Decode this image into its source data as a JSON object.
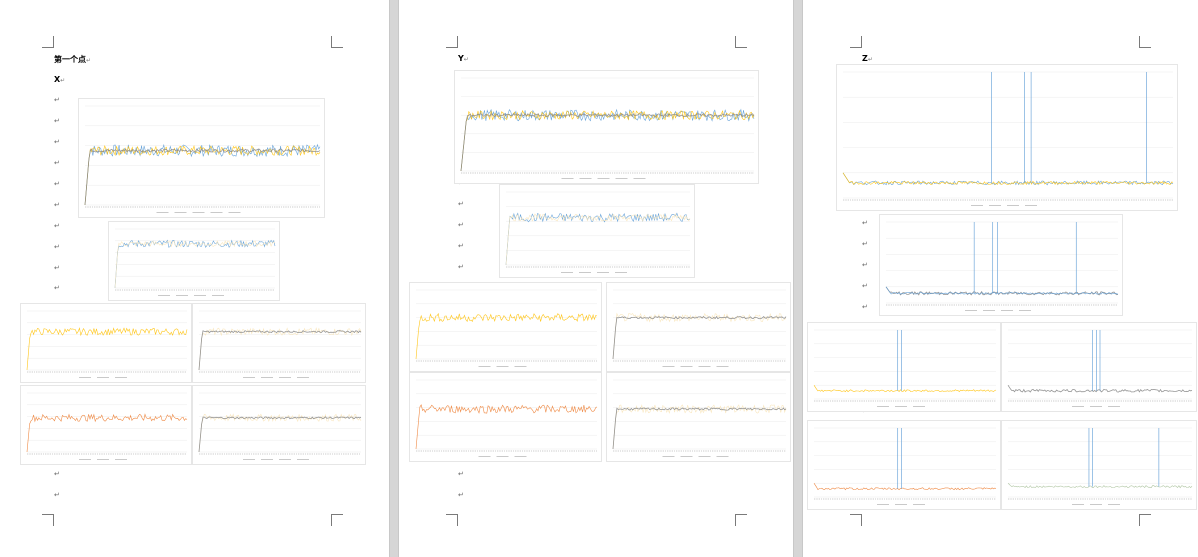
{
  "pages": [
    {
      "heading_main": "第一个点",
      "heading_sub": "X"
    },
    {
      "heading_sub": "Y"
    },
    {
      "heading_sub": "Z"
    }
  ],
  "paragraph_mark": "↵",
  "colors": {
    "blue": "#5b9bd5",
    "yellow": "#ffc000",
    "orange": "#ed7d31",
    "gray": "#8a8a8a",
    "pale": "#f8e4b8",
    "sage": "#a9c19a"
  },
  "chart_data": [
    {
      "type": "line",
      "page": "X",
      "series_colors": [
        "blue",
        "yellow",
        "gray"
      ],
      "ylim": [
        0,
        1
      ],
      "baseline": 0.55
    },
    {
      "type": "line",
      "page": "X",
      "series_colors": [
        "blue",
        "pale"
      ],
      "ylim": [
        0,
        1
      ],
      "baseline": 0.75
    },
    {
      "type": "line",
      "page": "X",
      "series_colors": [
        "yellow"
      ],
      "ylim": [
        0,
        1
      ],
      "baseline": 0.65
    },
    {
      "type": "line",
      "page": "X",
      "series_colors": [
        "pale",
        "gray"
      ],
      "ylim": [
        0,
        1
      ],
      "baseline": 0.65
    },
    {
      "type": "line",
      "page": "X",
      "series_colors": [
        "orange"
      ],
      "ylim": [
        0,
        1
      ],
      "baseline": 0.58
    },
    {
      "type": "line",
      "page": "X",
      "series_colors": [
        "pale",
        "gray"
      ],
      "ylim": [
        0,
        1
      ],
      "baseline": 0.58
    },
    {
      "type": "line",
      "page": "Y",
      "series_colors": [
        "blue",
        "yellow",
        "gray"
      ],
      "ylim": [
        0,
        1
      ],
      "baseline": 0.6
    },
    {
      "type": "line",
      "page": "Y",
      "series_colors": [
        "blue",
        "pale"
      ],
      "ylim": [
        0,
        1
      ],
      "baseline": 0.65
    },
    {
      "type": "line",
      "page": "Y",
      "series_colors": [
        "yellow"
      ],
      "ylim": [
        0,
        1
      ],
      "baseline": 0.6
    },
    {
      "type": "line",
      "page": "Y",
      "series_colors": [
        "pale",
        "gray"
      ],
      "ylim": [
        0,
        1
      ],
      "baseline": 0.6
    },
    {
      "type": "line",
      "page": "Y",
      "series_colors": [
        "orange"
      ],
      "ylim": [
        0,
        1
      ],
      "baseline": 0.58
    },
    {
      "type": "line",
      "page": "Y",
      "series_colors": [
        "pale",
        "gray"
      ],
      "ylim": [
        0,
        1
      ],
      "baseline": 0.58
    },
    {
      "type": "line",
      "page": "Z",
      "series_colors": [
        "blue",
        "yellow"
      ],
      "ylim": [
        0,
        1
      ],
      "baseline": 0.12,
      "spikes": [
        0.45,
        0.55,
        0.57,
        0.92
      ]
    },
    {
      "type": "line",
      "page": "Z",
      "series_colors": [
        "gray",
        "blue"
      ],
      "ylim": [
        0,
        1
      ],
      "baseline": 0.12,
      "spikes": [
        0.38,
        0.46,
        0.48,
        0.82
      ]
    },
    {
      "type": "line",
      "page": "Z",
      "series_colors": [
        "yellow"
      ],
      "ylim": [
        0,
        1
      ],
      "baseline": 0.12,
      "spikes": [
        0.46,
        0.48
      ]
    },
    {
      "type": "line",
      "page": "Z",
      "series_colors": [
        "gray"
      ],
      "ylim": [
        0,
        1
      ],
      "baseline": 0.12,
      "spikes": [
        0.46,
        0.48,
        0.5
      ]
    },
    {
      "type": "line",
      "page": "Z",
      "series_colors": [
        "orange"
      ],
      "ylim": [
        0,
        1
      ],
      "baseline": 0.12,
      "spikes": [
        0.46,
        0.48
      ]
    },
    {
      "type": "line",
      "page": "Z",
      "series_colors": [
        "sage"
      ],
      "ylim": [
        0,
        1
      ],
      "baseline": 0.15,
      "spikes": [
        0.44,
        0.46,
        0.82
      ]
    }
  ]
}
